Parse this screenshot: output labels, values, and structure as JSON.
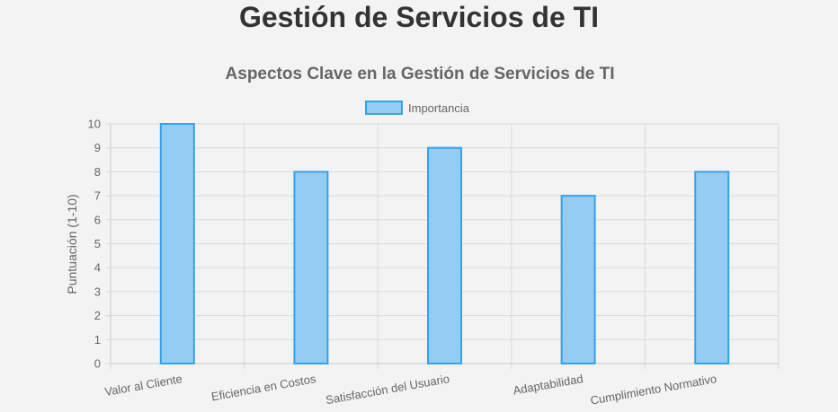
{
  "page": {
    "title": "Gestión de Servicios de TI"
  },
  "chart_data": {
    "type": "bar",
    "title": "Aspectos Clave en la Gestión de Servicios de TI",
    "xlabel": "",
    "ylabel": "Puntuación (1-10)",
    "categories": [
      "Valor al Cliente",
      "Eficiencia en Costos",
      "Satisfacción del Usuario",
      "Adaptabilidad",
      "Cumplimiento Normativo"
    ],
    "series": [
      {
        "name": "Importancia",
        "values": [
          10,
          8,
          9,
          7,
          8
        ]
      }
    ],
    "ylim": [
      0,
      10
    ],
    "yticks": [
      0,
      1,
      2,
      3,
      4,
      5,
      6,
      7,
      8,
      9,
      10
    ],
    "grid": true,
    "legend": "top-center",
    "colors": {
      "bar_fill": "#94ccf2",
      "bar_stroke": "#36a2eb",
      "grid": "#d9d9d9",
      "axis": "#c8c8c8",
      "text": "#666666",
      "title": "#666666"
    }
  }
}
